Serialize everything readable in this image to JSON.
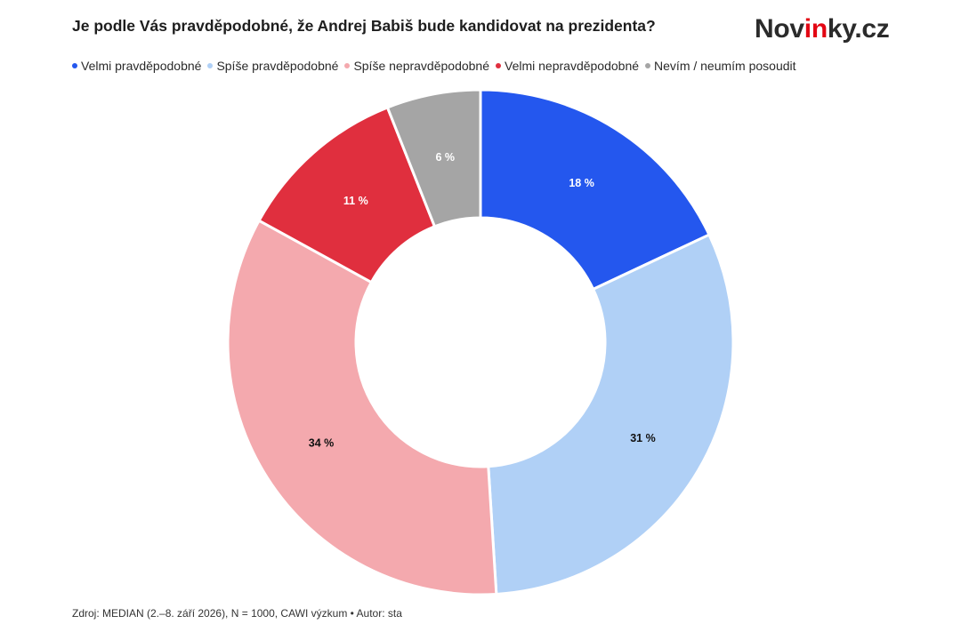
{
  "header": {
    "title": "Je podle Vás pravděpodobné, že Andrej Babiš bude kandidovat na prezidenta?",
    "logo_pre": "Nov",
    "logo_mid": "in",
    "logo_post": "ky.cz"
  },
  "footer": {
    "source": "Zdroj: MEDIAN (2.–8. září 2026), N = 1000, CAWI výzkum • Autor: sta"
  },
  "chart_data": {
    "type": "pie",
    "donut": true,
    "title": "Je podle Vás pravděpodobné, že Andrej Babiš bude kandidovat na prezidenta?",
    "legend_position": "top-left",
    "unit": "%",
    "series": [
      {
        "name": "Velmi pravděpodobné",
        "value": 18,
        "label": "18 %",
        "color": "#2457ee",
        "label_color": "#ffffff"
      },
      {
        "name": "Spíše pravděpodobné",
        "value": 31,
        "label": "31 %",
        "color": "#b0d0f6",
        "label_color": "#111111"
      },
      {
        "name": "Spíše nepravděpodobné",
        "value": 34,
        "label": "34 %",
        "color": "#f4a9ae",
        "label_color": "#111111"
      },
      {
        "name": "Velmi nepravděpodobné",
        "value": 11,
        "label": "11 %",
        "color": "#e02f3e",
        "label_color": "#ffffff"
      },
      {
        "name": "Nevím / neumím posoudit",
        "value": 6,
        "label": "6 %",
        "color": "#a5a5a5",
        "label_color": "#ffffff"
      }
    ]
  }
}
